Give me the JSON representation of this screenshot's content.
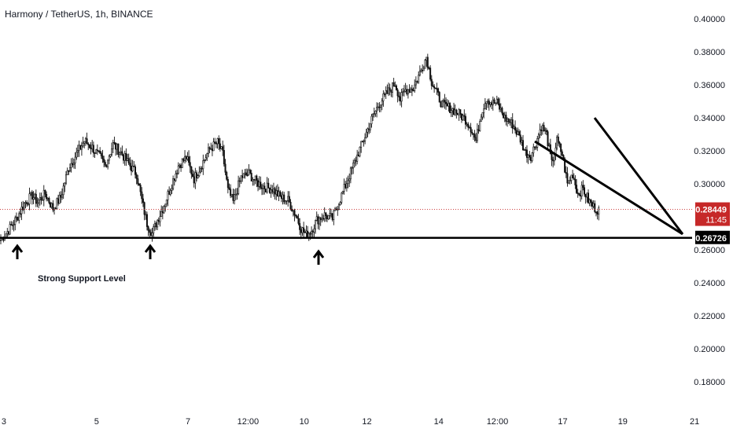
{
  "chart_data": {
    "type": "candlestick",
    "title": "Harmony / TetherUS, 1h, BINANCE",
    "ylim": [
      0.17,
      0.41
    ],
    "y_ticks": [
      "0.40000",
      "0.38000",
      "0.36000",
      "0.34000",
      "0.32000",
      "0.30000",
      "0.26000",
      "0.24000",
      "0.22000",
      "0.20000",
      "0.18000"
    ],
    "x_ticks": [
      "3",
      "5",
      "7",
      "12:00",
      "10",
      "12",
      "14",
      "12:00",
      "17",
      "19",
      "21"
    ],
    "last_price": {
      "value": "0.28449",
      "countdown": "11:45",
      "color": "#c62828"
    },
    "support": {
      "value": "0.26726",
      "label": "Strong Support Level",
      "color": "#000000"
    },
    "annotations": {
      "arrow_count": 3
    },
    "price_path": [
      [
        0,
        0.266
      ],
      [
        6,
        0.272
      ],
      [
        12,
        0.279
      ],
      [
        18,
        0.288
      ],
      [
        24,
        0.293
      ],
      [
        28,
        0.289
      ],
      [
        34,
        0.294
      ],
      [
        40,
        0.285
      ],
      [
        46,
        0.292
      ],
      [
        52,
        0.31
      ],
      [
        58,
        0.318
      ],
      [
        64,
        0.326
      ],
      [
        70,
        0.322
      ],
      [
        76,
        0.316
      ],
      [
        80,
        0.311
      ],
      [
        86,
        0.324
      ],
      [
        92,
        0.319
      ],
      [
        98,
        0.312
      ],
      [
        104,
        0.306
      ],
      [
        108,
        0.29
      ],
      [
        112,
        0.276
      ],
      [
        116,
        0.27
      ],
      [
        120,
        0.278
      ],
      [
        124,
        0.285
      ],
      [
        130,
        0.298
      ],
      [
        136,
        0.311
      ],
      [
        142,
        0.316
      ],
      [
        148,
        0.303
      ],
      [
        154,
        0.312
      ],
      [
        160,
        0.321
      ],
      [
        166,
        0.325
      ],
      [
        170,
        0.318
      ],
      [
        174,
        0.296
      ],
      [
        178,
        0.289
      ],
      [
        184,
        0.304
      ],
      [
        190,
        0.306
      ],
      [
        196,
        0.301
      ],
      [
        202,
        0.298
      ],
      [
        208,
        0.297
      ],
      [
        214,
        0.292
      ],
      [
        220,
        0.29
      ],
      [
        226,
        0.281
      ],
      [
        230,
        0.273
      ],
      [
        234,
        0.269
      ],
      [
        238,
        0.272
      ],
      [
        242,
        0.278
      ],
      [
        248,
        0.281
      ],
      [
        254,
        0.279
      ],
      [
        260,
        0.291
      ],
      [
        266,
        0.303
      ],
      [
        272,
        0.315
      ],
      [
        278,
        0.327
      ],
      [
        284,
        0.339
      ],
      [
        290,
        0.349
      ],
      [
        296,
        0.355
      ],
      [
        302,
        0.361
      ],
      [
        306,
        0.351
      ],
      [
        310,
        0.357
      ],
      [
        316,
        0.358
      ],
      [
        322,
        0.369
      ],
      [
        326,
        0.377
      ],
      [
        330,
        0.362
      ],
      [
        334,
        0.355
      ],
      [
        338,
        0.348
      ],
      [
        344,
        0.346
      ],
      [
        350,
        0.343
      ],
      [
        356,
        0.339
      ],
      [
        360,
        0.334
      ],
      [
        364,
        0.326
      ],
      [
        368,
        0.343
      ],
      [
        372,
        0.352
      ],
      [
        376,
        0.349
      ],
      [
        380,
        0.349
      ],
      [
        386,
        0.34
      ],
      [
        392,
        0.336
      ],
      [
        398,
        0.327
      ],
      [
        402,
        0.319
      ],
      [
        406,
        0.317
      ],
      [
        410,
        0.325
      ],
      [
        414,
        0.335
      ],
      [
        418,
        0.33
      ],
      [
        422,
        0.312
      ],
      [
        426,
        0.326
      ],
      [
        430,
        0.318
      ],
      [
        434,
        0.3
      ],
      [
        438,
        0.306
      ],
      [
        442,
        0.294
      ],
      [
        446,
        0.297
      ],
      [
        450,
        0.29
      ],
      [
        454,
        0.286
      ],
      [
        458,
        0.284
      ]
    ],
    "x_ticks_pos": [
      3,
      74,
      144,
      190,
      233,
      281,
      336,
      381,
      431,
      477,
      532
    ]
  }
}
